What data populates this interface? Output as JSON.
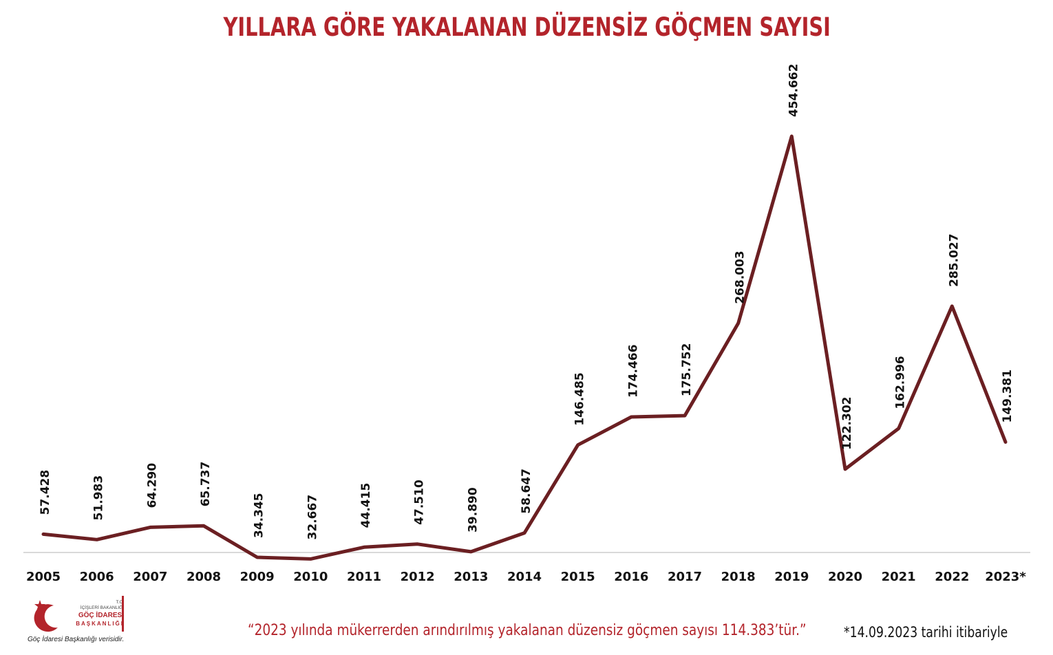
{
  "title": "YILLARA GÖRE YAKALANAN DÜZENSİZ GÖÇMEN SAYISI",
  "footnote_quote": "“2023 yılında mükerrerden arındırılmış yakalanan düzensiz göçmen sayısı 114.383’tür.”",
  "footnote_date": "*14.09.2023 tarihi itibariyle",
  "logo": {
    "ministry_line1": "T.C.",
    "ministry_line2": "İÇİŞLERİ BAKANLIĞI",
    "agency_line1": "GÖÇ İDARESİ",
    "agency_line2": "BAŞKANLIĞI",
    "source": "Göç İdaresi Başkanlığı verisidir."
  },
  "colors": {
    "title": "#b3242b",
    "line": "#6b1f22",
    "axis": "#d9d9d9"
  },
  "chart_data": {
    "type": "line",
    "title": "YILLARA GÖRE YAKALANAN DÜZENSİZ GÖÇMEN SAYISI",
    "xlabel": "",
    "ylabel": "",
    "grid": false,
    "legend": "none",
    "categories": [
      "2005",
      "2006",
      "2007",
      "2008",
      "2009",
      "2010",
      "2011",
      "2012",
      "2013",
      "2014",
      "2015",
      "2016",
      "2017",
      "2018",
      "2019",
      "2020",
      "2021",
      "2022",
      "2023*"
    ],
    "values": [
      57428,
      51983,
      64290,
      65737,
      34345,
      32667,
      44415,
      47510,
      39890,
      58647,
      146485,
      174466,
      175752,
      268003,
      454662,
      122302,
      162996,
      285027,
      149381
    ],
    "labels": [
      "57.428",
      "51.983",
      "64.290",
      "65.737",
      "34.345",
      "32.667",
      "44.415",
      "47.510",
      "39.890",
      "58.647",
      "146.485",
      "174.466",
      "175.752",
      "268.003",
      "454.662",
      "122.302",
      "162.996",
      "285.027",
      "149.381"
    ],
    "ylim": [
      0,
      460000
    ]
  }
}
